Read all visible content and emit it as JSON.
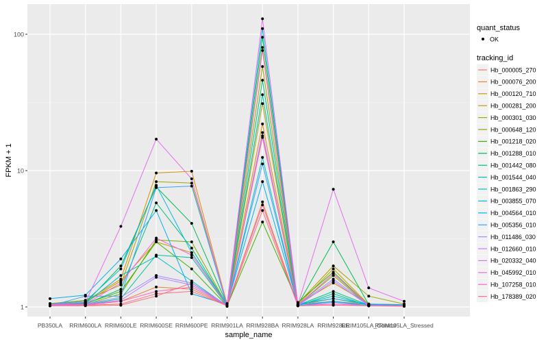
{
  "chart_data": {
    "type": "line",
    "xlabel": "sample_name",
    "ylabel": "FPKM + 1",
    "y_scale": "log",
    "ylim": [
      1,
      140
    ],
    "y_ticks": [
      {
        "value": 1,
        "label": "1"
      },
      {
        "value": 10,
        "label": "10"
      },
      {
        "value": 100,
        "label": "100"
      }
    ],
    "categories": [
      "PB350LA",
      "RRIM600LA",
      "RRIM600LE",
      "RRIM600SE",
      "RRIM600PE",
      "RRIM901LA",
      "RRIM928BA",
      "RRIM928LA",
      "RRIM928LE",
      "RRIM105LA_Control",
      "RRIM105LA_Stressed"
    ],
    "grid": true,
    "legend_position": "right",
    "shape_legend": {
      "title": "quant_status",
      "items": [
        {
          "label": "OK"
        }
      ]
    },
    "color_legend_title": "tracking_id",
    "series": [
      {
        "name": "Hb_000005_270",
        "color": "#F8766D",
        "values": [
          1.02,
          1.02,
          1.03,
          1.2,
          1.5,
          1.01,
          5.1,
          1.02,
          1.1,
          1.02,
          1.02
        ]
      },
      {
        "name": "Hb_000076_200",
        "color": "#EA8331",
        "values": [
          1.03,
          1.05,
          1.1,
          1.4,
          1.35,
          1.02,
          5.9,
          1.03,
          1.15,
          1.03,
          1.02
        ]
      },
      {
        "name": "Hb_000120_710",
        "color": "#D89000",
        "values": [
          1.05,
          1.1,
          1.6,
          9.6,
          9.9,
          1.05,
          22,
          1.05,
          1.5,
          1.05,
          1.04
        ]
      },
      {
        "name": "Hb_000281_200",
        "color": "#C09B00",
        "values": [
          1.04,
          1.08,
          1.55,
          3.0,
          2.5,
          1.04,
          31,
          1.04,
          1.9,
          1.04,
          1.03
        ]
      },
      {
        "name": "Hb_000301_030",
        "color": "#A3A500",
        "values": [
          1.06,
          1.12,
          1.45,
          8.3,
          8.1,
          1.06,
          58,
          1.06,
          2.0,
          1.2,
          1.05
        ]
      },
      {
        "name": "Hb_000648_120",
        "color": "#7CAE00",
        "values": [
          1.02,
          1.04,
          1.25,
          3.1,
          3.0,
          1.03,
          80,
          1.03,
          1.7,
          1.02,
          1.02
        ]
      },
      {
        "name": "Hb_001218_020",
        "color": "#39B600",
        "values": [
          1.03,
          1.06,
          1.3,
          3.0,
          1.9,
          1.02,
          4.2,
          1.08,
          1.8,
          1.03,
          1.02
        ]
      },
      {
        "name": "Hb_001288_010",
        "color": "#00BB4E",
        "values": [
          1.04,
          1.07,
          2.0,
          7.6,
          4.1,
          1.04,
          95,
          1.04,
          3.0,
          1.04,
          1.03
        ]
      },
      {
        "name": "Hb_001442_080",
        "color": "#00BF7D",
        "values": [
          1.03,
          1.05,
          1.35,
          5.8,
          2.7,
          1.03,
          46,
          1.03,
          1.3,
          1.03,
          1.02
        ]
      },
      {
        "name": "Hb_001544_040",
        "color": "#00C1A3",
        "values": [
          1.02,
          1.04,
          1.15,
          2.4,
          2.3,
          1.02,
          36,
          1.02,
          1.25,
          1.02,
          1.02
        ]
      },
      {
        "name": "Hb_001863_290",
        "color": "#00BFC4",
        "values": [
          1.03,
          1.06,
          1.7,
          2.35,
          1.55,
          1.02,
          12.5,
          1.03,
          1.2,
          1.03,
          1.02
        ]
      },
      {
        "name": "Hb_003855_070",
        "color": "#00BAE0",
        "values": [
          1.05,
          1.1,
          1.9,
          7.8,
          2.5,
          1.05,
          110,
          1.05,
          1.15,
          1.05,
          1.04
        ]
      },
      {
        "name": "Hb_004564_010",
        "color": "#00B0F6",
        "values": [
          1.15,
          1.22,
          2.25,
          5.1,
          1.25,
          1.04,
          8.3,
          1.04,
          1.1,
          1.04,
          1.03
        ]
      },
      {
        "name": "Hb_005356_010",
        "color": "#35A2FF",
        "values": [
          1.02,
          1.2,
          1.2,
          7.5,
          7.7,
          1.02,
          11.2,
          1.02,
          1.08,
          1.02,
          1.02
        ]
      },
      {
        "name": "Hb_011486_030",
        "color": "#9590FF",
        "values": [
          1.03,
          1.05,
          1.18,
          1.7,
          1.5,
          1.03,
          18,
          1.03,
          1.6,
          1.03,
          1.02
        ]
      },
      {
        "name": "Hb_012660_010",
        "color": "#C77CFF",
        "values": [
          1.02,
          1.04,
          1.12,
          1.65,
          1.45,
          1.02,
          19,
          1.02,
          1.55,
          1.02,
          1.02
        ]
      },
      {
        "name": "Hb_020332_040",
        "color": "#E76BF3",
        "values": [
          1.04,
          1.08,
          3.9,
          17,
          8.7,
          1.04,
          130,
          1.04,
          7.3,
          1.38,
          1.1
        ]
      },
      {
        "name": "Hb_045992_010",
        "color": "#FA62DB",
        "values": [
          1.03,
          1.05,
          1.5,
          3.2,
          2.4,
          1.03,
          76,
          1.03,
          1.75,
          1.03,
          1.02
        ]
      },
      {
        "name": "Hb_107258_010",
        "color": "#FF62BC",
        "values": [
          1.02,
          1.03,
          1.1,
          1.3,
          1.4,
          1.02,
          5.6,
          1.02,
          1.05,
          1.02,
          1.02
        ]
      },
      {
        "name": "Hb_178389_020",
        "color": "#FF6C91",
        "values": [
          1.02,
          1.03,
          1.05,
          1.25,
          1.3,
          1.02,
          17.5,
          1.02,
          1.03,
          1.02,
          1.01
        ]
      }
    ]
  }
}
